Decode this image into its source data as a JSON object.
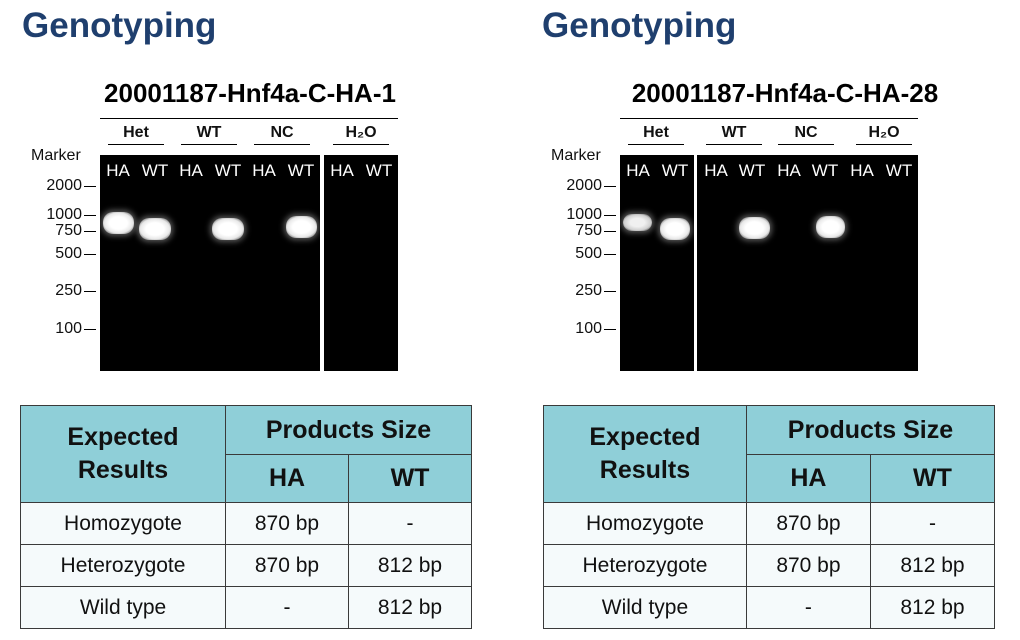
{
  "panels": [
    {
      "section_title": "Genotyping",
      "gel_title": "20001187-Hnf4a-C-HA-1",
      "groups": [
        "Het",
        "WT",
        "NC",
        "H₂O"
      ],
      "marker_title": "Marker",
      "marker_ticks": [
        "2000",
        "1000",
        "750",
        "500",
        "250",
        "100"
      ],
      "lanes": [
        "HA",
        "WT",
        "HA",
        "WT",
        "HA",
        "WT",
        "HA",
        "WT"
      ],
      "table": {
        "header_expected": "Expected Results",
        "header_products": "Products Size",
        "col_ha": "HA",
        "col_wt": "WT",
        "rows": [
          {
            "result": "Homozygote",
            "ha": "870 bp",
            "wt": "-"
          },
          {
            "result": "Heterozygote",
            "ha": "870 bp",
            "wt": "812 bp"
          },
          {
            "result": "Wild type",
            "ha": "-",
            "wt": "812 bp"
          }
        ]
      }
    },
    {
      "section_title": "Genotyping",
      "gel_title": "20001187-Hnf4a-C-HA-28",
      "groups": [
        "Het",
        "WT",
        "NC",
        "H₂O"
      ],
      "marker_title": "Marker",
      "marker_ticks": [
        "2000",
        "1000",
        "750",
        "500",
        "250",
        "100"
      ],
      "lanes": [
        "HA",
        "WT",
        "HA",
        "WT",
        "HA",
        "WT",
        "HA",
        "WT"
      ],
      "table": {
        "header_expected": "Expected Results",
        "header_products": "Products Size",
        "col_ha": "HA",
        "col_wt": "WT",
        "rows": [
          {
            "result": "Homozygote",
            "ha": "870 bp",
            "wt": "-"
          },
          {
            "result": "Heterozygote",
            "ha": "870 bp",
            "wt": "812 bp"
          },
          {
            "result": "Wild type",
            "ha": "-",
            "wt": "812 bp"
          }
        ]
      }
    }
  ]
}
